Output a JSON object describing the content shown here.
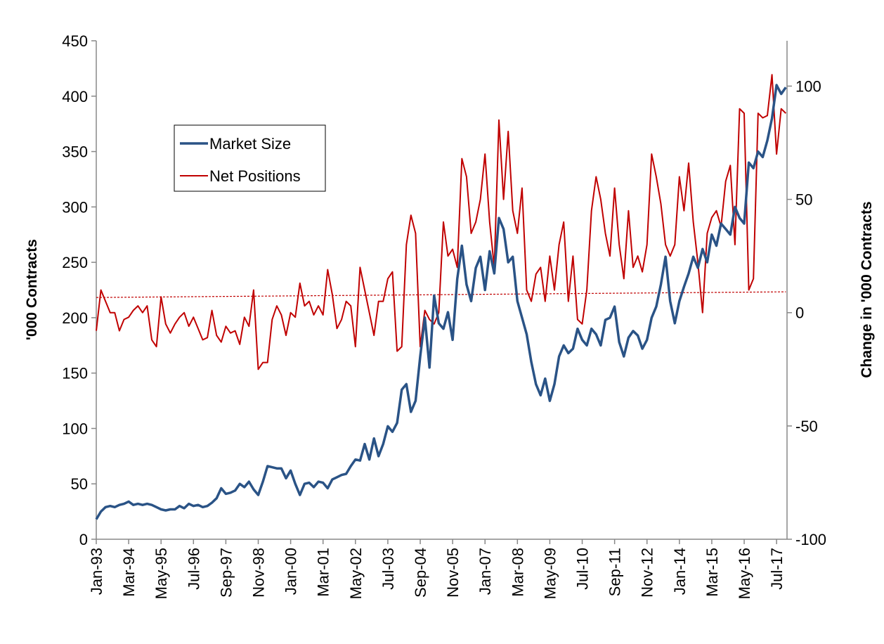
{
  "chart_data": {
    "type": "line",
    "y_label": "'000 Contracts",
    "y2_label": "Change in '000 Contracts",
    "categories": [
      "Jan-93",
      null,
      null,
      null,
      null,
      null,
      null,
      "Mar-94",
      null,
      null,
      null,
      null,
      null,
      null,
      "May-95",
      null,
      null,
      null,
      null,
      null,
      null,
      "Jul-96",
      null,
      null,
      null,
      null,
      null,
      null,
      "Sep-97",
      null,
      null,
      null,
      null,
      null,
      null,
      "Nov-98",
      null,
      null,
      null,
      null,
      null,
      null,
      "Jan-00",
      null,
      null,
      null,
      null,
      null,
      null,
      "Mar-01",
      null,
      null,
      null,
      null,
      null,
      null,
      "May-02",
      null,
      null,
      null,
      null,
      null,
      null,
      "Jul-03",
      null,
      null,
      null,
      null,
      null,
      null,
      "Sep-04",
      null,
      null,
      null,
      null,
      null,
      null,
      "Nov-05",
      null,
      null,
      null,
      null,
      null,
      null,
      "Jan-07",
      null,
      null,
      null,
      null,
      null,
      null,
      "Mar-08",
      null,
      null,
      null,
      null,
      null,
      null,
      "May-09",
      null,
      null,
      null,
      null,
      null,
      null,
      "Jul-10",
      null,
      null,
      null,
      null,
      null,
      null,
      "Sep-11",
      null,
      null,
      null,
      null,
      null,
      null,
      "Nov-12",
      null,
      null,
      null,
      null,
      null,
      null,
      "Jan-14",
      null,
      null,
      null,
      null,
      null,
      null,
      "Mar-15",
      null,
      null,
      null,
      null,
      null,
      null,
      "May-16",
      null,
      null,
      null,
      null,
      null,
      null,
      "Jul-17",
      null,
      null
    ],
    "series": [
      {
        "name": "Market Size",
        "color": "#2a5386",
        "width": 3.5,
        "values": [
          18,
          25,
          29,
          30,
          29,
          31,
          32,
          34,
          31,
          32,
          31,
          32,
          31,
          29,
          27,
          26,
          27,
          27,
          30,
          28,
          32,
          30,
          31,
          29,
          30,
          33,
          37,
          46,
          41,
          42,
          44,
          50,
          47,
          52,
          45,
          40,
          52,
          66,
          65,
          64,
          64,
          55,
          62,
          50,
          40,
          50,
          51,
          47,
          52,
          51,
          46,
          54,
          56,
          58,
          59,
          66,
          72,
          71,
          86,
          72,
          91,
          75,
          86,
          102,
          97,
          105,
          135,
          140,
          115,
          125,
          165,
          200,
          155,
          220,
          195,
          190,
          205,
          180,
          235,
          265,
          230,
          215,
          245,
          255,
          225,
          260,
          240,
          290,
          280,
          250,
          255,
          215,
          200,
          185,
          160,
          140,
          130,
          145,
          125,
          140,
          165,
          175,
          168,
          172,
          190,
          180,
          175,
          190,
          185,
          175,
          198,
          200,
          210,
          178,
          165,
          182,
          188,
          184,
          172,
          180,
          200,
          210,
          230,
          255,
          215,
          195,
          215,
          228,
          240,
          255,
          245,
          262,
          250,
          275,
          265,
          285,
          280,
          275,
          300,
          290,
          285,
          340,
          335,
          350,
          345,
          360,
          380,
          410,
          402,
          408
        ]
      },
      {
        "name": "Net Positions",
        "color": "#c00000",
        "width": 2,
        "axis": "y2",
        "values": [
          -8,
          10,
          5,
          0,
          0,
          -8,
          -3,
          -2,
          1,
          3,
          0,
          3,
          -12,
          -15,
          7,
          -5,
          -9,
          -5,
          -2,
          0,
          -6,
          -2,
          -7,
          -12,
          -11,
          1,
          -10,
          -13,
          -6,
          -9,
          -8,
          -14,
          -2,
          -6,
          10,
          -25,
          -22,
          -22,
          -3,
          3,
          -1,
          -10,
          0,
          -2,
          13,
          3,
          5,
          -1,
          3,
          -1,
          19,
          8,
          -7,
          -3,
          5,
          3,
          -15,
          20,
          10,
          0,
          -10,
          5,
          5,
          15,
          18,
          -17,
          -15,
          30,
          43,
          35,
          -15,
          1,
          -3,
          -5,
          0,
          40,
          25,
          28,
          20,
          68,
          60,
          35,
          40,
          50,
          70,
          40,
          20,
          85,
          50,
          80,
          45,
          35,
          55,
          10,
          5,
          17,
          20,
          5,
          25,
          10,
          30,
          40,
          5,
          25,
          -3,
          -5,
          10,
          45,
          60,
          50,
          35,
          25,
          55,
          30,
          15,
          45,
          20,
          25,
          18,
          30,
          70,
          60,
          48,
          30,
          25,
          30,
          60,
          45,
          66,
          40,
          22,
          0,
          35,
          42,
          45,
          38,
          58,
          65,
          30,
          90,
          88,
          10,
          15,
          88,
          86,
          87,
          105,
          70,
          90,
          88
        ]
      }
    ],
    "trendline": {
      "color": "#c00000",
      "axis": "y2",
      "values": [
        6.7,
        9.2
      ]
    },
    "ylim": [
      0,
      450
    ],
    "yticks": [
      0,
      50,
      100,
      150,
      200,
      250,
      300,
      350,
      400,
      450
    ],
    "y2lim": [
      -100,
      120
    ],
    "y2ticks": [
      -100,
      -50,
      0,
      50,
      100
    ]
  }
}
